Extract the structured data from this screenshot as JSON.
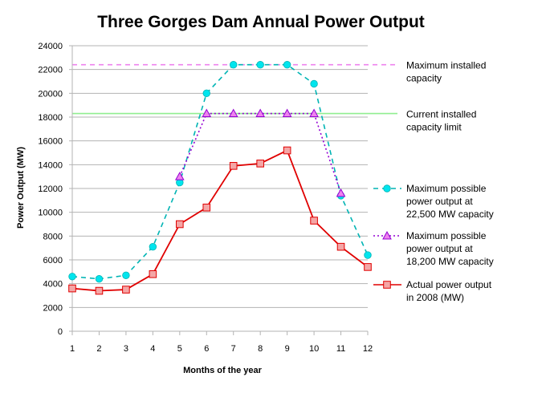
{
  "chart_data": {
    "type": "line",
    "title": "Three Gorges Dam Annual Power Output",
    "xlabel": "Months of the year",
    "ylabel": "Power Output (MW)",
    "x": [
      1,
      2,
      3,
      4,
      5,
      6,
      7,
      8,
      9,
      10,
      11,
      12
    ],
    "ylim": [
      0,
      24000
    ],
    "yticks": [
      0,
      2000,
      4000,
      6000,
      8000,
      10000,
      12000,
      14000,
      16000,
      18000,
      20000,
      22000,
      24000
    ],
    "grid": "horizontal",
    "legend_position": "right",
    "reference_lines": [
      {
        "name_lines": [
          "Maximum installed",
          "capacity"
        ],
        "value": 22400,
        "color": "#ee82ee",
        "style": "dashed"
      },
      {
        "name_lines": [
          "Current installed",
          "capacity limit"
        ],
        "value": 18300,
        "color": "#90ee90",
        "style": "solid"
      }
    ],
    "series": [
      {
        "name_lines": [
          "Maximum possible",
          "power output at",
          "22,500 MW capacity"
        ],
        "color": "#00b4b4",
        "marker": "circle",
        "marker_fill": "#00e5ee",
        "style": "dashed",
        "values": [
          4600,
          4400,
          4700,
          7100,
          12500,
          20000,
          22400,
          22400,
          22400,
          20800,
          11400,
          6400
        ]
      },
      {
        "name_lines": [
          "Maximum possible",
          "power output at",
          "18,200 MW capacity"
        ],
        "color": "#9400d3",
        "marker": "triangle",
        "marker_fill": "#ee82ee",
        "style": "dotted",
        "values": [
          null,
          null,
          null,
          null,
          13000,
          18300,
          18300,
          18300,
          18300,
          18300,
          11600,
          null
        ]
      },
      {
        "name_lines": [
          "Actual power output",
          "in 2008 (MW)"
        ],
        "color": "#e00000",
        "marker": "square",
        "marker_fill": "#f4a6a6",
        "style": "solid",
        "values": [
          3600,
          3400,
          3500,
          4800,
          9000,
          10400,
          13900,
          14100,
          15200,
          9300,
          7100,
          5400
        ]
      }
    ]
  }
}
